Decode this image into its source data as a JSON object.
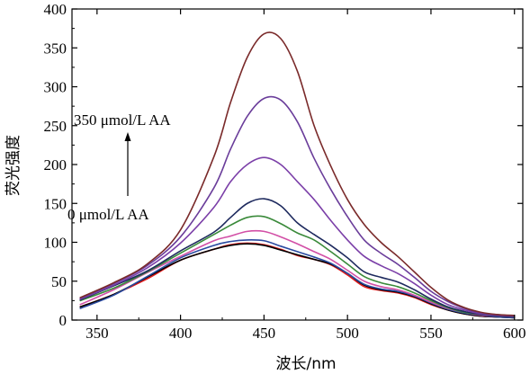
{
  "chart_data": {
    "type": "line",
    "title": "",
    "xlabel": "波长/nm",
    "ylabel": "荧光强度",
    "xlim": [
      335,
      605
    ],
    "ylim": [
      0,
      400
    ],
    "xticks": [
      350,
      400,
      450,
      500,
      550,
      600
    ],
    "yticks": [
      0,
      50,
      100,
      150,
      200,
      250,
      300,
      350,
      400
    ],
    "grid": false,
    "legend": "none",
    "annotations": {
      "top": "350 μmol/L AA",
      "bottom": "0 μmol/L AA"
    },
    "series": [
      {
        "color": "#e41a1c",
        "x": [
          340,
          360,
          380,
          400,
          420,
          430,
          440,
          450,
          460,
          470,
          480,
          490,
          500,
          510,
          520,
          530,
          540,
          550,
          560,
          570,
          580,
          590,
          600
        ],
        "y": [
          17,
          33,
          53,
          77,
          91,
          97,
          99,
          97,
          91,
          83,
          78,
          71,
          58,
          43,
          38,
          35,
          29,
          20,
          13,
          8,
          5,
          4,
          3
        ]
      },
      {
        "color": "#000000",
        "x": [
          340,
          360,
          380,
          400,
          420,
          430,
          440,
          450,
          460,
          470,
          480,
          490,
          500,
          510,
          520,
          530,
          540,
          550,
          560,
          570,
          580,
          590,
          600
        ],
        "y": [
          17,
          33,
          55,
          77,
          91,
          96,
          98,
          96,
          90,
          84,
          78,
          72,
          60,
          45,
          39,
          36,
          30,
          21,
          13,
          8,
          5,
          4,
          3
        ]
      },
      {
        "color": "#2b4aa0",
        "x": [
          340,
          360,
          380,
          400,
          420,
          430,
          440,
          450,
          460,
          470,
          480,
          490,
          500,
          510,
          520,
          530,
          540,
          550,
          560,
          570,
          580,
          590,
          600
        ],
        "y": [
          15,
          32,
          56,
          80,
          96,
          101,
          103,
          102,
          95,
          88,
          81,
          73,
          60,
          46,
          40,
          37,
          31,
          22,
          14,
          9,
          6,
          4,
          3
        ]
      },
      {
        "color": "#d24fa6",
        "x": [
          340,
          360,
          380,
          400,
          420,
          430,
          440,
          450,
          460,
          470,
          480,
          490,
          500,
          510,
          520,
          530,
          540,
          550,
          560,
          570,
          580,
          590,
          600
        ],
        "y": [
          20,
          39,
          61,
          82,
          102,
          108,
          114,
          114,
          107,
          98,
          88,
          78,
          64,
          50,
          43,
          39,
          32,
          23,
          15,
          10,
          6,
          5,
          4
        ]
      },
      {
        "color": "#3a8a3a",
        "x": [
          340,
          360,
          380,
          400,
          420,
          430,
          440,
          450,
          460,
          470,
          480,
          490,
          500,
          510,
          520,
          530,
          540,
          550,
          560,
          570,
          580,
          590,
          600
        ],
        "y": [
          25,
          41,
          62,
          86,
          110,
          122,
          132,
          133,
          124,
          112,
          103,
          88,
          72,
          56,
          48,
          43,
          35,
          25,
          16,
          10,
          7,
          5,
          4
        ]
      },
      {
        "color": "#1e2a5e",
        "x": [
          340,
          360,
          380,
          400,
          420,
          430,
          440,
          450,
          460,
          470,
          480,
          490,
          500,
          510,
          520,
          530,
          540,
          550,
          560,
          570,
          580,
          590,
          600
        ],
        "y": [
          26,
          44,
          63,
          89,
          113,
          132,
          150,
          156,
          147,
          125,
          110,
          96,
          80,
          62,
          55,
          49,
          39,
          27,
          17,
          11,
          7,
          5,
          4
        ]
      },
      {
        "color": "#7b3fa8",
        "x": [
          340,
          360,
          380,
          400,
          420,
          430,
          440,
          450,
          460,
          470,
          480,
          490,
          500,
          510,
          520,
          530,
          540,
          550,
          560,
          570,
          580,
          590,
          600
        ],
        "y": [
          27,
          45,
          67,
          99,
          145,
          178,
          200,
          209,
          200,
          178,
          155,
          128,
          103,
          82,
          70,
          60,
          47,
          32,
          20,
          13,
          8,
          6,
          5
        ]
      },
      {
        "color": "#6a3d9a",
        "x": [
          340,
          360,
          380,
          400,
          420,
          430,
          440,
          450,
          460,
          470,
          480,
          490,
          500,
          510,
          520,
          530,
          540,
          550,
          560,
          570,
          580,
          590,
          600
        ],
        "y": [
          28,
          47,
          70,
          107,
          170,
          220,
          262,
          285,
          283,
          255,
          208,
          168,
          133,
          103,
          86,
          72,
          55,
          37,
          24,
          15,
          9,
          7,
          5
        ]
      },
      {
        "color": "#7a2a2a",
        "x": [
          340,
          360,
          380,
          400,
          420,
          430,
          440,
          450,
          460,
          470,
          480,
          490,
          500,
          510,
          520,
          530,
          540,
          550,
          560,
          570,
          580,
          590,
          600
        ],
        "y": [
          29,
          48,
          72,
          116,
          210,
          280,
          338,
          368,
          362,
          320,
          250,
          198,
          155,
          123,
          100,
          82,
          62,
          42,
          26,
          16,
          10,
          7,
          6
        ]
      }
    ]
  }
}
